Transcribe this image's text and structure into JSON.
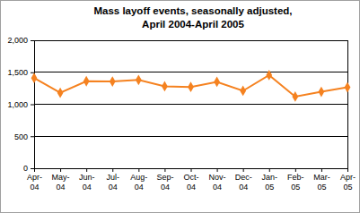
{
  "chart_data": {
    "type": "line",
    "title": "Mass layoff events, seasonally adjusted,",
    "subtitle": "April 2004-April 2005",
    "categories": [
      "Apr-04",
      "May-04",
      "Jun-04",
      "Jul-04",
      "Aug-04",
      "Sep-04",
      "Oct-04",
      "Nov-04",
      "Dec-04",
      "Jan-05",
      "Feb-05",
      "Mar-05",
      "Apr-05"
    ],
    "values": [
      1410,
      1180,
      1360,
      1355,
      1380,
      1280,
      1270,
      1350,
      1210,
      1455,
      1120,
      1195,
      1265
    ],
    "color": "#f58220",
    "marker": "diamond",
    "ylim": [
      0,
      2000
    ],
    "yticks": [
      0,
      500,
      {
        "value": 1000,
        "label": "1,000"
      },
      {
        "value": 1500,
        "label": "1,500"
      },
      {
        "value": 2000,
        "label": "2,000"
      }
    ],
    "grid": true
  }
}
